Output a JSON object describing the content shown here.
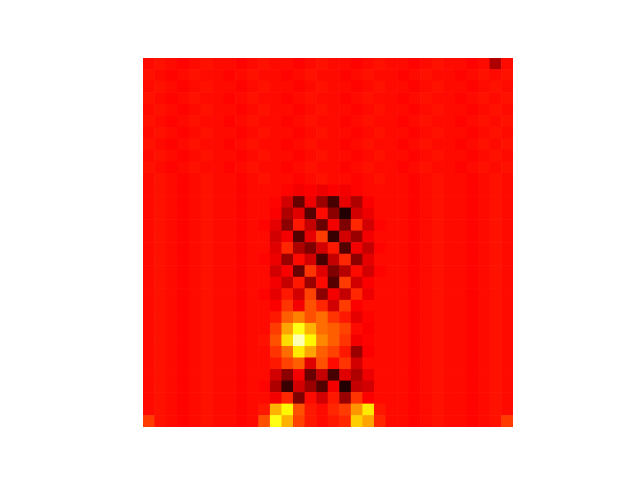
{
  "chart_data": {
    "type": "heatmap",
    "color": "hot",
    "tick_labels": false,
    "zlim": [
      0,
      1
    ],
    "cells": [
      [
        0.38,
        0.39,
        0.38,
        0.37,
        0.38,
        0.39,
        0.38,
        0.38,
        0.37,
        0.38,
        0.39,
        0.38,
        0.38,
        0.37,
        0.38,
        0.39,
        0.38,
        0.38,
        0.37,
        0.38,
        0.39,
        0.38,
        0.38,
        0.37,
        0.38,
        0.39,
        0.38,
        0.38,
        0.37,
        0.38,
        0.25,
        0.38
      ],
      [
        0.39,
        0.38,
        0.37,
        0.38,
        0.39,
        0.38,
        0.38,
        0.37,
        0.38,
        0.39,
        0.38,
        0.38,
        0.37,
        0.38,
        0.39,
        0.38,
        0.38,
        0.37,
        0.38,
        0.39,
        0.38,
        0.38,
        0.37,
        0.38,
        0.39,
        0.38,
        0.38,
        0.37,
        0.38,
        0.39,
        0.38,
        0.39
      ],
      [
        0.38,
        0.39,
        0.38,
        0.37,
        0.38,
        0.39,
        0.38,
        0.38,
        0.37,
        0.38,
        0.39,
        0.38,
        0.38,
        0.37,
        0.38,
        0.39,
        0.38,
        0.38,
        0.37,
        0.38,
        0.39,
        0.38,
        0.38,
        0.37,
        0.38,
        0.39,
        0.38,
        0.38,
        0.37,
        0.38,
        0.39,
        0.38
      ],
      [
        0.39,
        0.38,
        0.37,
        0.38,
        0.39,
        0.38,
        0.38,
        0.37,
        0.38,
        0.39,
        0.38,
        0.38,
        0.37,
        0.38,
        0.39,
        0.38,
        0.38,
        0.37,
        0.38,
        0.39,
        0.38,
        0.38,
        0.37,
        0.38,
        0.39,
        0.38,
        0.38,
        0.37,
        0.38,
        0.39,
        0.38,
        0.39
      ],
      [
        0.38,
        0.39,
        0.38,
        0.37,
        0.38,
        0.39,
        0.38,
        0.38,
        0.37,
        0.38,
        0.39,
        0.38,
        0.38,
        0.37,
        0.38,
        0.39,
        0.38,
        0.38,
        0.37,
        0.38,
        0.39,
        0.38,
        0.38,
        0.37,
        0.38,
        0.39,
        0.38,
        0.38,
        0.37,
        0.38,
        0.39,
        0.38
      ],
      [
        0.39,
        0.38,
        0.37,
        0.38,
        0.39,
        0.38,
        0.38,
        0.37,
        0.38,
        0.39,
        0.38,
        0.38,
        0.37,
        0.38,
        0.39,
        0.38,
        0.38,
        0.37,
        0.38,
        0.39,
        0.38,
        0.38,
        0.37,
        0.38,
        0.39,
        0.38,
        0.38,
        0.37,
        0.38,
        0.39,
        0.38,
        0.39
      ],
      [
        0.38,
        0.39,
        0.38,
        0.37,
        0.38,
        0.39,
        0.38,
        0.38,
        0.37,
        0.38,
        0.39,
        0.38,
        0.38,
        0.37,
        0.38,
        0.39,
        0.38,
        0.38,
        0.37,
        0.38,
        0.39,
        0.38,
        0.38,
        0.37,
        0.38,
        0.39,
        0.38,
        0.38,
        0.37,
        0.38,
        0.39,
        0.38
      ],
      [
        0.39,
        0.38,
        0.37,
        0.38,
        0.39,
        0.38,
        0.38,
        0.37,
        0.38,
        0.39,
        0.38,
        0.38,
        0.37,
        0.38,
        0.39,
        0.38,
        0.38,
        0.37,
        0.38,
        0.39,
        0.38,
        0.38,
        0.37,
        0.38,
        0.39,
        0.38,
        0.38,
        0.37,
        0.38,
        0.39,
        0.38,
        0.39
      ],
      [
        0.38,
        0.39,
        0.38,
        0.37,
        0.38,
        0.39,
        0.38,
        0.38,
        0.37,
        0.38,
        0.39,
        0.38,
        0.38,
        0.37,
        0.38,
        0.39,
        0.38,
        0.38,
        0.37,
        0.38,
        0.39,
        0.38,
        0.38,
        0.37,
        0.38,
        0.39,
        0.38,
        0.38,
        0.37,
        0.38,
        0.39,
        0.38
      ],
      [
        0.39,
        0.38,
        0.37,
        0.38,
        0.39,
        0.38,
        0.38,
        0.37,
        0.38,
        0.39,
        0.38,
        0.38,
        0.37,
        0.38,
        0.39,
        0.38,
        0.38,
        0.37,
        0.38,
        0.39,
        0.38,
        0.38,
        0.37,
        0.38,
        0.39,
        0.38,
        0.38,
        0.37,
        0.38,
        0.39,
        0.38,
        0.39
      ],
      [
        0.38,
        0.39,
        0.38,
        0.37,
        0.38,
        0.39,
        0.38,
        0.38,
        0.37,
        0.38,
        0.39,
        0.38,
        0.38,
        0.37,
        0.38,
        0.39,
        0.38,
        0.38,
        0.37,
        0.38,
        0.39,
        0.38,
        0.38,
        0.37,
        0.38,
        0.39,
        0.38,
        0.38,
        0.37,
        0.38,
        0.39,
        0.38
      ],
      [
        0.38,
        0.39,
        0.38,
        0.37,
        0.38,
        0.39,
        0.38,
        0.38,
        0.37,
        0.38,
        0.38,
        0.38,
        0.37,
        0.35,
        0.36,
        0.34,
        0.36,
        0.35,
        0.37,
        0.38,
        0.38,
        0.38,
        0.38,
        0.37,
        0.38,
        0.39,
        0.38,
        0.38,
        0.37,
        0.38,
        0.39,
        0.38
      ],
      [
        0.38,
        0.39,
        0.38,
        0.37,
        0.38,
        0.39,
        0.38,
        0.38,
        0.37,
        0.38,
        0.38,
        0.37,
        0.3,
        0.15,
        0.34,
        0.22,
        0.1,
        0.33,
        0.25,
        0.36,
        0.38,
        0.38,
        0.38,
        0.37,
        0.38,
        0.39,
        0.38,
        0.38,
        0.37,
        0.38,
        0.39,
        0.38
      ],
      [
        0.38,
        0.39,
        0.38,
        0.37,
        0.38,
        0.39,
        0.38,
        0.38,
        0.37,
        0.38,
        0.38,
        0.36,
        0.25,
        0.32,
        0.12,
        0.38,
        0.2,
        0.05,
        0.3,
        0.34,
        0.38,
        0.38,
        0.38,
        0.37,
        0.38,
        0.39,
        0.38,
        0.38,
        0.37,
        0.38,
        0.39,
        0.38
      ],
      [
        0.38,
        0.39,
        0.38,
        0.37,
        0.38,
        0.39,
        0.38,
        0.38,
        0.37,
        0.38,
        0.37,
        0.33,
        0.2,
        0.4,
        0.28,
        0.15,
        0.35,
        0.18,
        0.42,
        0.3,
        0.37,
        0.38,
        0.38,
        0.37,
        0.38,
        0.39,
        0.38,
        0.38,
        0.37,
        0.38,
        0.39,
        0.38
      ],
      [
        0.38,
        0.39,
        0.38,
        0.37,
        0.38,
        0.39,
        0.38,
        0.38,
        0.37,
        0.38,
        0.38,
        0.3,
        0.35,
        0.12,
        0.33,
        0.45,
        0.08,
        0.3,
        0.22,
        0.35,
        0.38,
        0.38,
        0.38,
        0.37,
        0.38,
        0.39,
        0.38,
        0.38,
        0.37,
        0.38,
        0.39,
        0.38
      ],
      [
        0.38,
        0.39,
        0.38,
        0.37,
        0.38,
        0.39,
        0.38,
        0.38,
        0.37,
        0.38,
        0.38,
        0.32,
        0.42,
        0.25,
        0.18,
        0.3,
        0.4,
        0.12,
        0.35,
        0.28,
        0.37,
        0.38,
        0.38,
        0.37,
        0.38,
        0.39,
        0.38,
        0.38,
        0.37,
        0.38,
        0.39,
        0.38
      ],
      [
        0.38,
        0.39,
        0.38,
        0.37,
        0.38,
        0.39,
        0.38,
        0.38,
        0.37,
        0.38,
        0.37,
        0.34,
        0.22,
        0.38,
        0.3,
        0.1,
        0.28,
        0.42,
        0.2,
        0.33,
        0.38,
        0.38,
        0.38,
        0.37,
        0.38,
        0.39,
        0.38,
        0.38,
        0.37,
        0.38,
        0.39,
        0.38
      ],
      [
        0.38,
        0.39,
        0.38,
        0.37,
        0.38,
        0.39,
        0.38,
        0.38,
        0.37,
        0.38,
        0.38,
        0.3,
        0.36,
        0.15,
        0.44,
        0.32,
        0.18,
        0.26,
        0.38,
        0.3,
        0.37,
        0.38,
        0.38,
        0.37,
        0.38,
        0.39,
        0.38,
        0.38,
        0.37,
        0.38,
        0.39,
        0.38
      ],
      [
        0.38,
        0.39,
        0.38,
        0.37,
        0.38,
        0.39,
        0.38,
        0.38,
        0.37,
        0.38,
        0.38,
        0.35,
        0.28,
        0.4,
        0.22,
        0.38,
        0.12,
        0.45,
        0.3,
        0.36,
        0.38,
        0.38,
        0.38,
        0.37,
        0.38,
        0.39,
        0.38,
        0.38,
        0.37,
        0.38,
        0.39,
        0.38
      ],
      [
        0.38,
        0.39,
        0.38,
        0.37,
        0.38,
        0.39,
        0.38,
        0.38,
        0.37,
        0.38,
        0.37,
        0.33,
        0.4,
        0.3,
        0.46,
        0.2,
        0.35,
        0.28,
        0.42,
        0.34,
        0.38,
        0.38,
        0.38,
        0.37,
        0.38,
        0.39,
        0.38,
        0.38,
        0.37,
        0.38,
        0.39,
        0.38
      ],
      [
        0.38,
        0.39,
        0.38,
        0.37,
        0.38,
        0.39,
        0.38,
        0.38,
        0.37,
        0.38,
        0.38,
        0.36,
        0.44,
        0.35,
        0.48,
        0.42,
        0.3,
        0.45,
        0.36,
        0.38,
        0.38,
        0.38,
        0.38,
        0.37,
        0.38,
        0.39,
        0.38,
        0.38,
        0.37,
        0.38,
        0.39,
        0.38
      ],
      [
        0.38,
        0.39,
        0.38,
        0.37,
        0.38,
        0.39,
        0.38,
        0.38,
        0.37,
        0.38,
        0.38,
        0.4,
        0.5,
        0.55,
        0.48,
        0.52,
        0.44,
        0.4,
        0.33,
        0.37,
        0.38,
        0.38,
        0.38,
        0.37,
        0.38,
        0.39,
        0.38,
        0.38,
        0.37,
        0.38,
        0.39,
        0.38
      ],
      [
        0.38,
        0.39,
        0.38,
        0.37,
        0.38,
        0.39,
        0.38,
        0.38,
        0.37,
        0.38,
        0.38,
        0.45,
        0.6,
        0.75,
        0.62,
        0.52,
        0.5,
        0.46,
        0.38,
        0.36,
        0.38,
        0.38,
        0.38,
        0.37,
        0.38,
        0.39,
        0.38,
        0.38,
        0.37,
        0.38,
        0.39,
        0.38
      ],
      [
        0.38,
        0.39,
        0.38,
        0.37,
        0.38,
        0.39,
        0.38,
        0.38,
        0.37,
        0.38,
        0.39,
        0.48,
        0.68,
        0.92,
        0.72,
        0.56,
        0.5,
        0.44,
        0.35,
        0.37,
        0.38,
        0.38,
        0.38,
        0.37,
        0.38,
        0.39,
        0.38,
        0.38,
        0.37,
        0.38,
        0.39,
        0.38
      ],
      [
        0.38,
        0.39,
        0.38,
        0.37,
        0.38,
        0.39,
        0.38,
        0.38,
        0.37,
        0.38,
        0.38,
        0.44,
        0.52,
        0.7,
        0.6,
        0.5,
        0.46,
        0.4,
        0.22,
        0.36,
        0.38,
        0.38,
        0.38,
        0.37,
        0.38,
        0.39,
        0.38,
        0.38,
        0.37,
        0.38,
        0.39,
        0.38
      ],
      [
        0.38,
        0.39,
        0.38,
        0.37,
        0.38,
        0.39,
        0.38,
        0.38,
        0.37,
        0.38,
        0.38,
        0.4,
        0.46,
        0.5,
        0.32,
        0.48,
        0.38,
        0.44,
        0.3,
        0.38,
        0.38,
        0.38,
        0.38,
        0.37,
        0.38,
        0.39,
        0.38,
        0.38,
        0.37,
        0.38,
        0.39,
        0.38
      ],
      [
        0.38,
        0.39,
        0.38,
        0.37,
        0.38,
        0.39,
        0.38,
        0.38,
        0.37,
        0.38,
        0.38,
        0.3,
        0.2,
        0.35,
        0.15,
        0.28,
        0.1,
        0.32,
        0.25,
        0.34,
        0.38,
        0.38,
        0.38,
        0.37,
        0.38,
        0.39,
        0.38,
        0.38,
        0.37,
        0.38,
        0.39,
        0.38
      ],
      [
        0.38,
        0.39,
        0.38,
        0.37,
        0.38,
        0.39,
        0.38,
        0.38,
        0.37,
        0.38,
        0.37,
        0.25,
        0.08,
        0.3,
        0.22,
        0.12,
        0.35,
        0.05,
        0.28,
        0.3,
        0.38,
        0.38,
        0.38,
        0.37,
        0.38,
        0.39,
        0.38,
        0.38,
        0.37,
        0.38,
        0.39,
        0.38
      ],
      [
        0.38,
        0.39,
        0.38,
        0.37,
        0.38,
        0.39,
        0.38,
        0.38,
        0.37,
        0.38,
        0.38,
        0.35,
        0.42,
        0.18,
        0.38,
        0.3,
        0.4,
        0.22,
        0.44,
        0.36,
        0.38,
        0.38,
        0.38,
        0.37,
        0.38,
        0.39,
        0.38,
        0.38,
        0.37,
        0.38,
        0.39,
        0.38
      ],
      [
        0.38,
        0.39,
        0.38,
        0.37,
        0.38,
        0.39,
        0.38,
        0.38,
        0.37,
        0.38,
        0.4,
        0.62,
        0.72,
        0.48,
        0.4,
        0.38,
        0.42,
        0.45,
        0.58,
        0.7,
        0.4,
        0.38,
        0.38,
        0.37,
        0.38,
        0.39,
        0.38,
        0.38,
        0.37,
        0.38,
        0.39,
        0.38
      ],
      [
        0.45,
        0.39,
        0.38,
        0.37,
        0.38,
        0.39,
        0.38,
        0.38,
        0.37,
        0.38,
        0.48,
        0.75,
        0.62,
        0.46,
        0.4,
        0.38,
        0.4,
        0.42,
        0.66,
        0.6,
        0.42,
        0.38,
        0.38,
        0.37,
        0.38,
        0.39,
        0.38,
        0.38,
        0.37,
        0.38,
        0.39,
        0.45
      ]
    ]
  }
}
